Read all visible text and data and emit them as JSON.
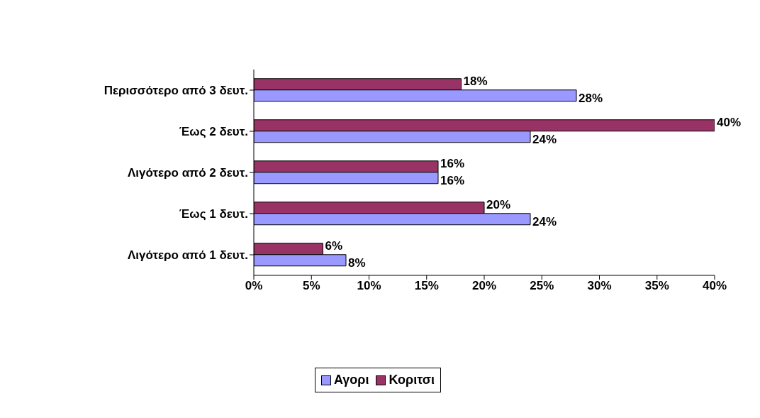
{
  "chart_data": {
    "type": "bar",
    "orientation": "horizontal",
    "categories": [
      "Περισσότερο από 3 δευτ.",
      "Έως 2 δευτ.",
      "Λιγότερο από 2 δευτ.",
      "Έως 1 δευτ.",
      "Λιγότερο από 1 δευτ."
    ],
    "series": [
      {
        "name": "Αγορι",
        "color": "#9999ff",
        "values": [
          28,
          24,
          16,
          24,
          8
        ],
        "value_labels": [
          "28%",
          "24%",
          "16%",
          "24%",
          "8%"
        ]
      },
      {
        "name": "Κοριτσι",
        "color": "#993366",
        "values": [
          18,
          40,
          16,
          20,
          6
        ],
        "value_labels": [
          "18%",
          "40%",
          "16%",
          "20%",
          "6%"
        ]
      }
    ],
    "xlim": [
      0,
      40
    ],
    "xticks": [
      {
        "value": 0,
        "label": "0%"
      },
      {
        "value": 5,
        "label": "5%"
      },
      {
        "value": 10,
        "label": "10%"
      },
      {
        "value": 15,
        "label": "15%"
      },
      {
        "value": 20,
        "label": "20%"
      },
      {
        "value": 25,
        "label": "25%"
      },
      {
        "value": 30,
        "label": "30%"
      },
      {
        "value": 35,
        "label": "35%"
      },
      {
        "value": 40,
        "label": "40%"
      }
    ],
    "grid": false,
    "legend": "bottom"
  }
}
